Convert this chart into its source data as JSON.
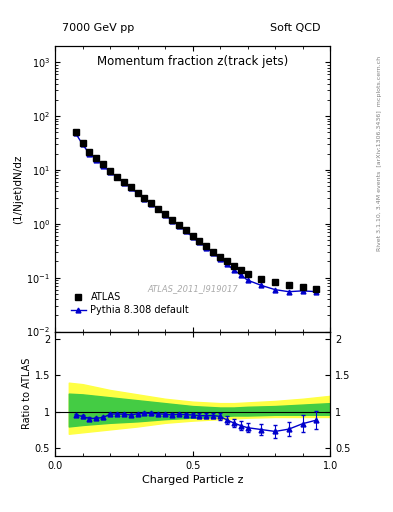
{
  "title_main": "Momentum fraction z(track jets)",
  "top_left_label": "7000 GeV pp",
  "top_right_label": "Soft QCD",
  "right_label": "Rivet 3.1.10, 3.4M events  [arXiv:1306.3436]  mcplots.cern.ch",
  "watermark": "ATLAS_2011_I919017",
  "ylabel_main": "(1/Njet)dN/dz",
  "ylabel_ratio": "Ratio to ATLAS",
  "xlabel": "Charged Particle z",
  "atlas_x": [
    0.075,
    0.1,
    0.125,
    0.15,
    0.175,
    0.2,
    0.225,
    0.25,
    0.275,
    0.3,
    0.325,
    0.35,
    0.375,
    0.4,
    0.425,
    0.45,
    0.475,
    0.5,
    0.525,
    0.55,
    0.575,
    0.6,
    0.625,
    0.65,
    0.675,
    0.7,
    0.75,
    0.8,
    0.85,
    0.9,
    0.95
  ],
  "atlas_y": [
    50,
    32,
    22,
    17,
    13,
    9.5,
    7.5,
    6.0,
    4.8,
    3.8,
    3.0,
    2.4,
    1.9,
    1.5,
    1.2,
    0.95,
    0.76,
    0.6,
    0.48,
    0.38,
    0.3,
    0.24,
    0.2,
    0.165,
    0.138,
    0.115,
    0.095,
    0.082,
    0.072,
    0.068,
    0.062
  ],
  "pythia_x": [
    0.075,
    0.1,
    0.125,
    0.15,
    0.175,
    0.2,
    0.225,
    0.25,
    0.275,
    0.3,
    0.325,
    0.35,
    0.375,
    0.4,
    0.425,
    0.45,
    0.475,
    0.5,
    0.525,
    0.55,
    0.575,
    0.6,
    0.625,
    0.65,
    0.675,
    0.7,
    0.75,
    0.8,
    0.85,
    0.9,
    0.95
  ],
  "pythia_y": [
    48,
    30,
    20,
    15.5,
    12,
    9.2,
    7.3,
    5.8,
    4.6,
    3.7,
    2.95,
    2.35,
    1.85,
    1.45,
    1.15,
    0.92,
    0.73,
    0.575,
    0.455,
    0.36,
    0.285,
    0.225,
    0.178,
    0.14,
    0.112,
    0.09,
    0.072,
    0.06,
    0.055,
    0.057,
    0.055
  ],
  "ratio_x": [
    0.075,
    0.1,
    0.125,
    0.15,
    0.175,
    0.2,
    0.225,
    0.25,
    0.275,
    0.3,
    0.325,
    0.35,
    0.375,
    0.4,
    0.425,
    0.45,
    0.475,
    0.5,
    0.525,
    0.55,
    0.575,
    0.6,
    0.625,
    0.65,
    0.675,
    0.7,
    0.75,
    0.8,
    0.85,
    0.9,
    0.95
  ],
  "ratio_y": [
    0.96,
    0.937,
    0.909,
    0.912,
    0.923,
    0.968,
    0.973,
    0.967,
    0.958,
    0.974,
    0.983,
    0.979,
    0.974,
    0.967,
    0.958,
    0.968,
    0.961,
    0.958,
    0.948,
    0.947,
    0.95,
    0.938,
    0.89,
    0.848,
    0.812,
    0.783,
    0.758,
    0.732,
    0.764,
    0.838,
    0.887
  ],
  "ratio_yerr": [
    0.015,
    0.015,
    0.015,
    0.015,
    0.015,
    0.015,
    0.015,
    0.015,
    0.015,
    0.015,
    0.015,
    0.015,
    0.015,
    0.015,
    0.02,
    0.02,
    0.022,
    0.025,
    0.03,
    0.035,
    0.04,
    0.045,
    0.05,
    0.055,
    0.06,
    0.065,
    0.075,
    0.085,
    0.095,
    0.115,
    0.125
  ],
  "band_x_yellow": [
    0.05,
    0.1,
    0.2,
    0.3,
    0.4,
    0.5,
    0.6,
    0.65,
    0.7,
    0.8,
    0.9,
    1.0
  ],
  "yellow_low": [
    0.7,
    0.72,
    0.76,
    0.8,
    0.85,
    0.88,
    0.9,
    0.91,
    0.92,
    0.93,
    0.93,
    0.93
  ],
  "yellow_high": [
    1.4,
    1.38,
    1.3,
    1.24,
    1.18,
    1.14,
    1.12,
    1.12,
    1.13,
    1.15,
    1.18,
    1.22
  ],
  "band_x_green": [
    0.05,
    0.1,
    0.2,
    0.3,
    0.4,
    0.5,
    0.6,
    0.65,
    0.7,
    0.8,
    0.9,
    1.0
  ],
  "green_low": [
    0.8,
    0.82,
    0.85,
    0.87,
    0.9,
    0.92,
    0.94,
    0.95,
    0.95,
    0.96,
    0.96,
    0.96
  ],
  "green_high": [
    1.25,
    1.24,
    1.2,
    1.16,
    1.12,
    1.08,
    1.06,
    1.06,
    1.07,
    1.08,
    1.1,
    1.12
  ],
  "xlim": [
    0.0,
    1.0
  ],
  "ylim_main": [
    0.01,
    2000
  ],
  "ylim_ratio": [
    0.4,
    2.1
  ],
  "ratio_yticks": [
    0.5,
    1.0,
    1.5,
    2.0
  ],
  "ratio_yticklabels": [
    "0.5",
    "1",
    "1.5",
    "2"
  ],
  "line_color": "#0000cc",
  "marker_color_atlas": "#000000",
  "atlas_marker": "s",
  "pythia_marker": "^",
  "legend_atlas": "ATLAS",
  "legend_pythia": "Pythia 8.308 default",
  "yellow_color": "#ffff44",
  "green_color": "#44cc44"
}
